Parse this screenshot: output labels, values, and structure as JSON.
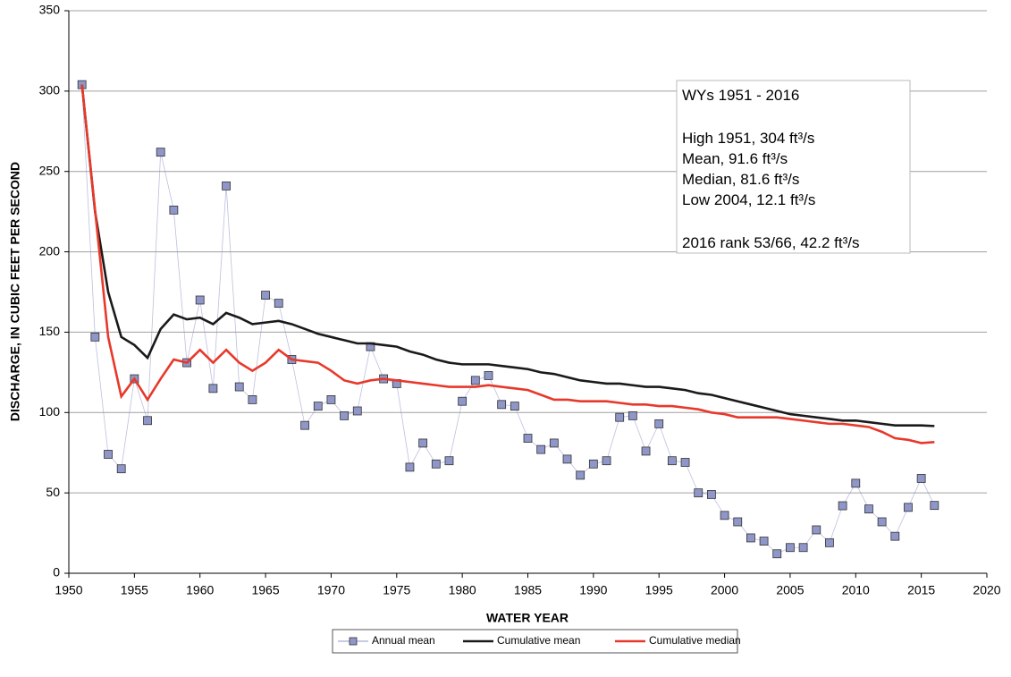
{
  "chart_data": {
    "type": "line",
    "x_label": "WATER YEAR",
    "y_label": "DISCHARGE, IN CUBIC FEET PER SECOND",
    "x": [
      1951,
      1952,
      1953,
      1954,
      1955,
      1956,
      1957,
      1958,
      1959,
      1960,
      1961,
      1962,
      1963,
      1964,
      1965,
      1966,
      1967,
      1968,
      1969,
      1970,
      1971,
      1972,
      1973,
      1974,
      1975,
      1976,
      1977,
      1978,
      1979,
      1980,
      1981,
      1982,
      1983,
      1984,
      1985,
      1986,
      1987,
      1988,
      1989,
      1990,
      1991,
      1992,
      1993,
      1994,
      1995,
      1996,
      1997,
      1998,
      1999,
      2000,
      2001,
      2002,
      2003,
      2004,
      2005,
      2006,
      2007,
      2008,
      2009,
      2010,
      2011,
      2012,
      2013,
      2014,
      2015,
      2016
    ],
    "series": [
      {
        "name": "Annual mean",
        "color": "#8f96c8",
        "marker": "square",
        "values": [
          304,
          147,
          74,
          65,
          121,
          95,
          262,
          226,
          131,
          170,
          115,
          241,
          116,
          108,
          173,
          168,
          133,
          92,
          104,
          108,
          98,
          101,
          141,
          121,
          118,
          66,
          81,
          68,
          70,
          107,
          120,
          123,
          105,
          104,
          84,
          77,
          81,
          71,
          61,
          68,
          70,
          97,
          98,
          76,
          93,
          70,
          69,
          50,
          49,
          36,
          32,
          22,
          20,
          12.1,
          16,
          16,
          27,
          19,
          42,
          56,
          40,
          32,
          23,
          41,
          59,
          42.2
        ]
      },
      {
        "name": "Cumulative mean",
        "color": "#1a1a1a",
        "values": [
          304,
          225,
          175,
          147,
          142,
          134,
          152,
          161,
          158,
          159,
          155,
          162,
          159,
          155,
          156,
          157,
          155,
          152,
          149,
          147,
          145,
          143,
          143,
          142,
          141,
          138,
          136,
          133,
          131,
          130,
          130,
          130,
          129,
          128,
          127,
          125,
          124,
          122,
          120,
          119,
          118,
          118,
          117,
          116,
          116,
          115,
          114,
          112,
          111,
          109,
          107,
          105,
          103,
          101,
          99,
          98,
          97,
          96,
          95,
          95,
          94,
          93,
          92,
          92,
          92,
          91.6
        ]
      },
      {
        "name": "Cumulative median",
        "color": "#e8382b",
        "values": [
          304,
          226,
          147,
          110,
          121,
          108,
          121,
          133,
          131,
          139,
          131,
          139,
          131,
          126,
          131,
          139,
          133,
          132,
          131,
          126,
          120,
          118,
          120,
          121,
          120,
          119,
          118,
          117,
          116,
          116,
          116,
          117,
          116,
          115,
          114,
          111,
          108,
          108,
          107,
          107,
          107,
          106,
          105,
          105,
          104,
          104,
          103,
          102,
          100,
          99,
          97,
          97,
          97,
          97,
          96,
          95,
          94,
          93,
          93,
          92,
          91,
          88,
          84,
          83,
          81,
          81.6
        ]
      }
    ],
    "xlim": [
      1950,
      2020
    ],
    "xticks": [
      1950,
      1955,
      1960,
      1965,
      1970,
      1975,
      1980,
      1985,
      1990,
      1995,
      2000,
      2005,
      2010,
      2015,
      2020
    ],
    "ylim": [
      0,
      350
    ],
    "yticks": [
      0,
      50,
      100,
      150,
      200,
      250,
      300,
      350
    ],
    "grid": true,
    "legend": "bottom",
    "annotation": [
      "WYs 1951 - 2016",
      "High 1951, 304 ft³/s",
      "Mean, 91.6 ft³/s",
      "Median, 81.6 ft³/s",
      "Low 2004, 12.1 ft³/s",
      "2016 rank 53/66, 42.2 ft³/s"
    ]
  }
}
